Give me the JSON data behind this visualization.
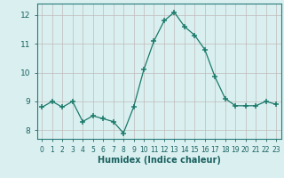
{
  "x": [
    0,
    1,
    2,
    3,
    4,
    5,
    6,
    7,
    8,
    9,
    10,
    11,
    12,
    13,
    14,
    15,
    16,
    17,
    18,
    19,
    20,
    21,
    22,
    23
  ],
  "y": [
    8.8,
    9.0,
    8.8,
    9.0,
    8.3,
    8.5,
    8.4,
    8.3,
    7.9,
    8.8,
    10.1,
    11.1,
    11.8,
    12.1,
    11.6,
    11.3,
    10.8,
    9.85,
    9.1,
    8.85,
    8.85,
    8.85,
    9.0,
    8.9
  ],
  "line_color": "#1a7a6a",
  "marker": "+",
  "marker_size": 4,
  "bg_color": "#daf0f0",
  "grid_color": "#c0b8b8",
  "xlabel": "Humidex (Indice chaleur)",
  "xlim": [
    -0.5,
    23.5
  ],
  "ylim": [
    7.7,
    12.4
  ],
  "yticks": [
    8,
    9,
    10,
    11,
    12
  ],
  "xticks": [
    0,
    1,
    2,
    3,
    4,
    5,
    6,
    7,
    8,
    9,
    10,
    11,
    12,
    13,
    14,
    15,
    16,
    17,
    18,
    19,
    20,
    21,
    22,
    23
  ]
}
